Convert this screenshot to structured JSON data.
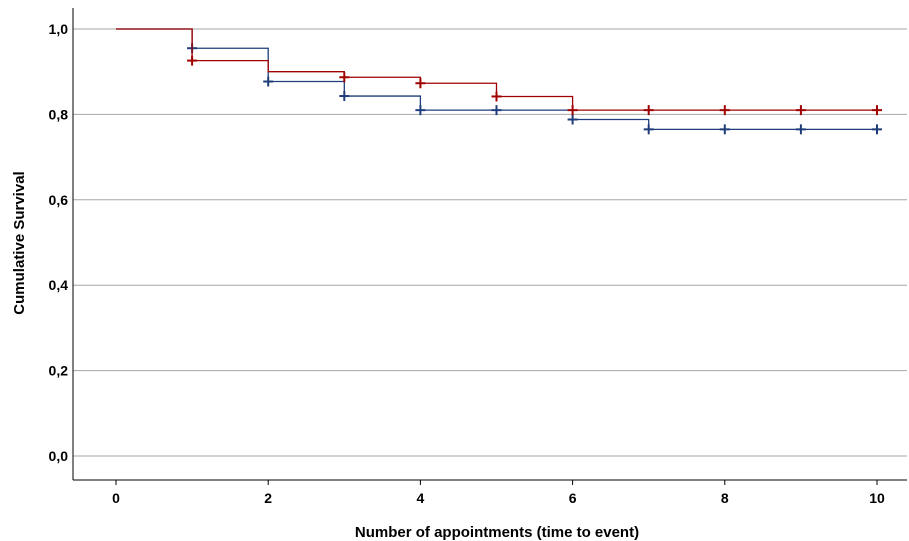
{
  "chart_data": {
    "type": "line",
    "subtype": "kaplan-meier-step",
    "title": "",
    "xlabel": "Number of appointments (time to event)",
    "ylabel": "Cumulative Survival",
    "xlim": [
      0,
      10
    ],
    "ylim": [
      0,
      1
    ],
    "x_ticks": [
      0,
      2,
      4,
      6,
      8,
      10
    ],
    "x_tick_labels": [
      "0",
      "2",
      "4",
      "6",
      "8",
      "10"
    ],
    "y_ticks": [
      0,
      0.2,
      0.4,
      0.6,
      0.8,
      1.0
    ],
    "y_tick_labels": [
      "0,0",
      "0,2",
      "0,4",
      "0,6",
      "0,8",
      "1,0"
    ],
    "grid": "horizontal",
    "legend": "none",
    "series": [
      {
        "color": "#1f3d7a",
        "steps": [
          {
            "x": 0,
            "y": 1.0
          },
          {
            "x": 1,
            "y": 0.955
          },
          {
            "x": 2,
            "y": 0.877
          },
          {
            "x": 3,
            "y": 0.843
          },
          {
            "x": 4,
            "y": 0.81
          },
          {
            "x": 6,
            "y": 0.788
          },
          {
            "x": 7,
            "y": 0.765
          }
        ],
        "end_x": 10,
        "censored": [
          {
            "x": 1,
            "y": 0.955
          },
          {
            "x": 2,
            "y": 0.877
          },
          {
            "x": 3,
            "y": 0.843
          },
          {
            "x": 4,
            "y": 0.81
          },
          {
            "x": 5,
            "y": 0.81
          },
          {
            "x": 6,
            "y": 0.788
          },
          {
            "x": 7,
            "y": 0.765
          },
          {
            "x": 8,
            "y": 0.765
          },
          {
            "x": 9,
            "y": 0.765
          },
          {
            "x": 10,
            "y": 0.765
          }
        ]
      },
      {
        "color": "#a00000",
        "steps": [
          {
            "x": 0,
            "y": 1.0
          },
          {
            "x": 1,
            "y": 0.926
          },
          {
            "x": 2,
            "y": 0.9
          },
          {
            "x": 3,
            "y": 0.887
          },
          {
            "x": 4,
            "y": 0.873
          },
          {
            "x": 5,
            "y": 0.842
          },
          {
            "x": 6,
            "y": 0.81
          }
        ],
        "end_x": 10,
        "censored": [
          {
            "x": 1,
            "y": 0.926
          },
          {
            "x": 3,
            "y": 0.887
          },
          {
            "x": 4,
            "y": 0.873
          },
          {
            "x": 5,
            "y": 0.842
          },
          {
            "x": 6,
            "y": 0.81
          },
          {
            "x": 7,
            "y": 0.81
          },
          {
            "x": 8,
            "y": 0.81
          },
          {
            "x": 9,
            "y": 0.81
          },
          {
            "x": 10,
            "y": 0.81
          }
        ]
      }
    ]
  }
}
